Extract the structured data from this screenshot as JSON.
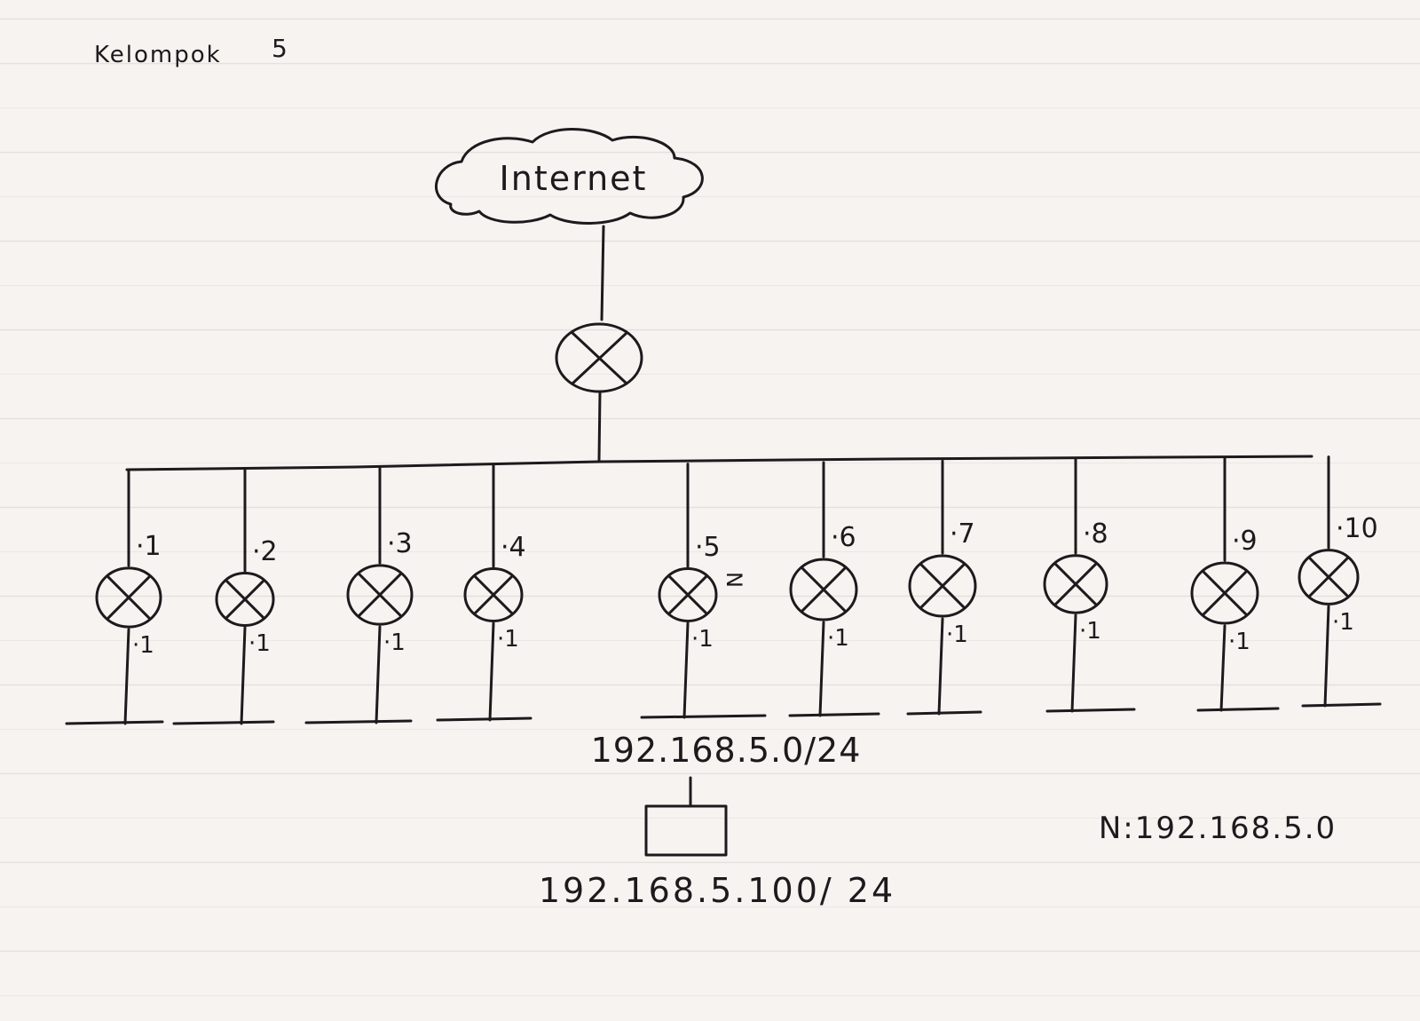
{
  "page": {
    "group_label": "Kelompok",
    "group_number": "5"
  },
  "cloud": {
    "label": "Internet"
  },
  "routers": [
    {
      "top_label": "·1",
      "bottom_label": "·1"
    },
    {
      "top_label": "·2",
      "bottom_label": "·1"
    },
    {
      "top_label": "·3",
      "bottom_label": "·1"
    },
    {
      "top_label": "·4",
      "bottom_label": "·1"
    },
    {
      "top_label": "·5",
      "bottom_label": "·1",
      "mark": "N"
    },
    {
      "top_label": "·6",
      "bottom_label": "·1"
    },
    {
      "top_label": "·7",
      "bottom_label": "·1"
    },
    {
      "top_label": "·8",
      "bottom_label": "·1"
    },
    {
      "top_label": "·9",
      "bottom_label": "·1"
    },
    {
      "top_label": "·10",
      "bottom_label": "·1"
    }
  ],
  "network": {
    "label": "192.168.5.0/24"
  },
  "host": {
    "label": "192.168.5.100/ 24"
  },
  "note": {
    "text": "N:192.168.5.0"
  },
  "colors": {
    "ink": "#1c1a1d",
    "paper": "#f6f3f0",
    "rule": "#e6dfdc"
  }
}
